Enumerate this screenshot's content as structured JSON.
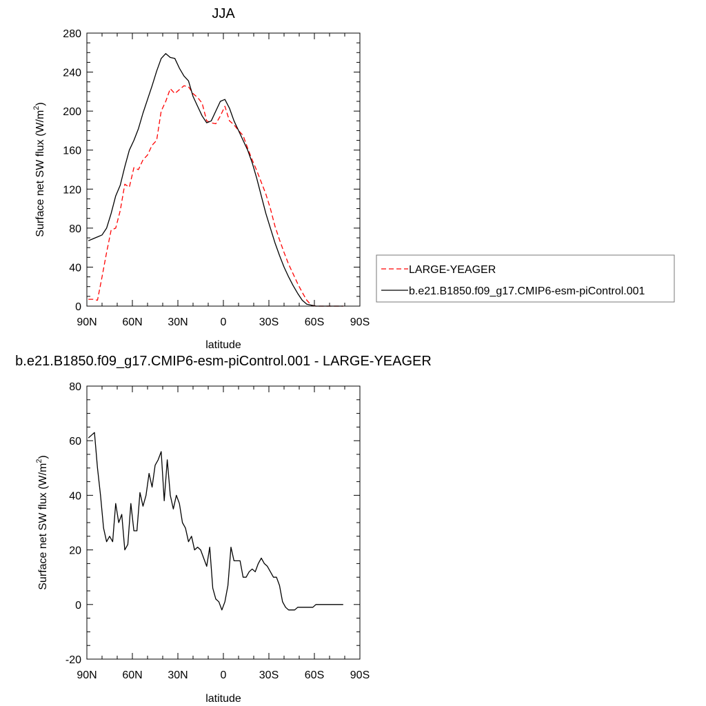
{
  "chart_data": [
    {
      "type": "line",
      "title": "JJA",
      "xlabel": "latitude",
      "ylabel": "Surface net SW flux (W/m",
      "ylabel_sup": "2",
      "ylabel_end": ")",
      "xlim": [
        90,
        -90
      ],
      "ylim": [
        0,
        280
      ],
      "yticks": [
        0,
        40,
        80,
        120,
        160,
        200,
        240,
        280
      ],
      "xticks": [
        90,
        60,
        30,
        0,
        -30,
        -60,
        -90
      ],
      "xtick_labels": [
        "90N",
        "60N",
        "30N",
        "0",
        "30S",
        "60S",
        "90S"
      ],
      "grid": false,
      "legend_position": "right",
      "series": [
        {
          "name": "LARGE-YEAGER",
          "color": "#ff0000",
          "dash": "dashed",
          "x": [
            89,
            86,
            83,
            80,
            77,
            74,
            71,
            68,
            65,
            62,
            59,
            56,
            53,
            50,
            47,
            44,
            41,
            38,
            35,
            32,
            29,
            26,
            23,
            20,
            17,
            14,
            11,
            8,
            5,
            2,
            -1,
            -4,
            -7,
            -10,
            -13,
            -16,
            -19,
            -22,
            -25,
            -28,
            -31,
            -34,
            -37,
            -40,
            -43,
            -46,
            -49,
            -52,
            -55,
            -58,
            -61,
            -64,
            -67,
            -70,
            -73,
            -76,
            -79
          ],
          "values": [
            7,
            7,
            6,
            30,
            55,
            78,
            80,
            98,
            125,
            122,
            142,
            140,
            150,
            155,
            165,
            170,
            200,
            210,
            223,
            218,
            222,
            226,
            225,
            218,
            214,
            208,
            190,
            188,
            187,
            195,
            205,
            190,
            186,
            180,
            175,
            162,
            150,
            139,
            127,
            115,
            100,
            82,
            68,
            55,
            43,
            33,
            23,
            14,
            6,
            1,
            0,
            0,
            0,
            0,
            0,
            0,
            0
          ]
        },
        {
          "name": "b.e21.B1850.f09_g17.CMIP6-esm-piControl.001",
          "color": "#000000",
          "dash": "solid",
          "x": [
            89,
            86,
            83,
            80,
            77,
            74,
            71,
            68,
            65,
            62,
            59,
            56,
            53,
            50,
            47,
            44,
            41,
            38,
            35,
            32,
            29,
            26,
            23,
            20,
            17,
            14,
            11,
            8,
            5,
            2,
            -1,
            -4,
            -7,
            -10,
            -13,
            -16,
            -19,
            -22,
            -25,
            -28,
            -31,
            -34,
            -37,
            -40,
            -43,
            -46,
            -49,
            -52,
            -55,
            -58,
            -61,
            -64,
            -67,
            -70,
            -73,
            -76,
            -79
          ],
          "values": [
            67,
            69,
            71,
            73,
            80,
            95,
            113,
            124,
            143,
            160,
            170,
            182,
            198,
            212,
            226,
            241,
            254,
            259,
            255,
            254,
            244,
            236,
            231,
            215,
            205,
            195,
            188,
            190,
            200,
            210,
            212,
            203,
            190,
            180,
            170,
            160,
            147,
            131,
            113,
            95,
            80,
            65,
            52,
            40,
            30,
            21,
            13,
            6,
            2,
            1,
            0,
            0,
            0,
            0,
            0,
            0,
            0
          ]
        }
      ]
    },
    {
      "type": "line",
      "title": "b.e21.B1850.f09_g17.CMIP6-esm-piControl.001 - LARGE-YEAGER",
      "xlabel": "latitude",
      "ylabel": "Surface net SW flux (W/m",
      "ylabel_sup": "2",
      "ylabel_end": ")",
      "xlim": [
        90,
        -90
      ],
      "ylim": [
        -20,
        80
      ],
      "yticks": [
        -20,
        0,
        20,
        40,
        60,
        80
      ],
      "xticks": [
        90,
        60,
        30,
        0,
        -30,
        -60,
        -90
      ],
      "xtick_labels": [
        "90N",
        "60N",
        "30N",
        "0",
        "30S",
        "60S",
        "90S"
      ],
      "grid": false,
      "series": [
        {
          "color": "#000000",
          "dash": "solid",
          "x": [
            89,
            87,
            85,
            83,
            81,
            79,
            77,
            75,
            73,
            71,
            69,
            67,
            65,
            63,
            61,
            59,
            57,
            55,
            53,
            51,
            49,
            47,
            45,
            43,
            41,
            39,
            37,
            35,
            33,
            31,
            29,
            27,
            25,
            23,
            21,
            19,
            17,
            15,
            13,
            11,
            9,
            7,
            5,
            3,
            1,
            -1,
            -3,
            -5,
            -7,
            -9,
            -11,
            -13,
            -15,
            -17,
            -19,
            -21,
            -23,
            -25,
            -27,
            -29,
            -31,
            -33,
            -35,
            -37,
            -39,
            -41,
            -43,
            -45,
            -47,
            -49,
            -51,
            -53,
            -55,
            -57,
            -59,
            -61,
            -63,
            -65,
            -67,
            -69,
            -71,
            -73,
            -75,
            -77,
            -79
          ],
          "values": [
            61,
            62,
            63,
            50,
            40,
            28,
            23,
            25,
            23,
            37,
            30,
            33,
            20,
            22,
            37,
            27,
            27,
            41,
            36,
            40,
            48,
            43,
            51,
            53,
            56,
            38,
            53,
            40,
            35,
            40,
            37,
            30,
            28,
            23,
            25,
            20,
            21,
            20,
            17,
            14,
            21,
            6,
            2,
            1,
            -2,
            1,
            7,
            21,
            16,
            16,
            16,
            10,
            10,
            12,
            13,
            12,
            15,
            17,
            15,
            14,
            12,
            10,
            10,
            7,
            1,
            -1,
            -2,
            -2,
            -2,
            -1,
            -1,
            -1,
            -1,
            -1,
            -1,
            0,
            0,
            0,
            0,
            0,
            0,
            0,
            0,
            0,
            0
          ]
        }
      ]
    }
  ]
}
